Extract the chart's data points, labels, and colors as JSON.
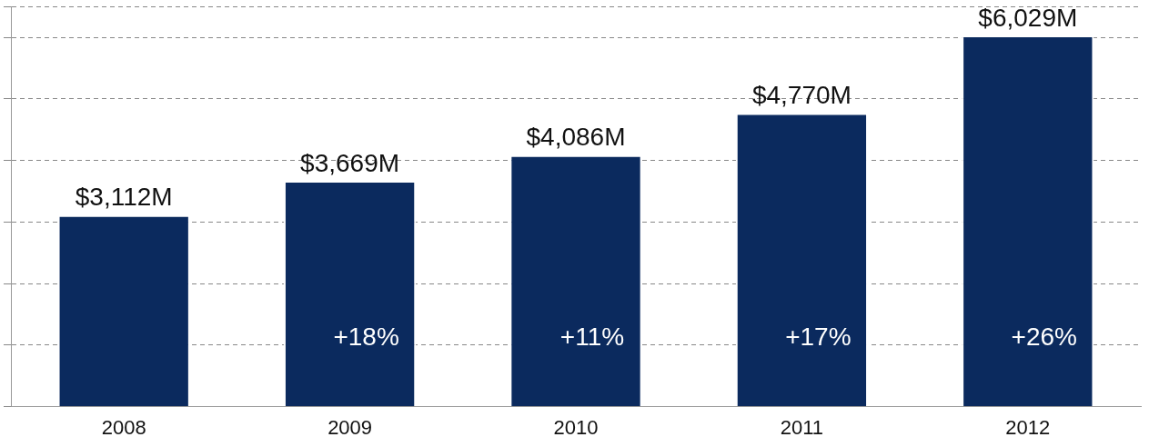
{
  "chart_data": {
    "type": "bar",
    "categories": [
      "2008",
      "2009",
      "2010",
      "2011",
      "2012"
    ],
    "values": [
      3112,
      3669,
      4086,
      4770,
      6029
    ],
    "color": "#0b2a5e",
    "value_labels": [
      "$3,112M",
      "$3,669M",
      "$4,086M",
      "$4,770M",
      "$6,029M"
    ],
    "ylim": [
      0,
      6500
    ],
    "annotations": [
      "+18%",
      "+11%",
      "+17%",
      "+26%"
    ],
    "grid": "y",
    "legend": false,
    "tick_labels": "x"
  }
}
